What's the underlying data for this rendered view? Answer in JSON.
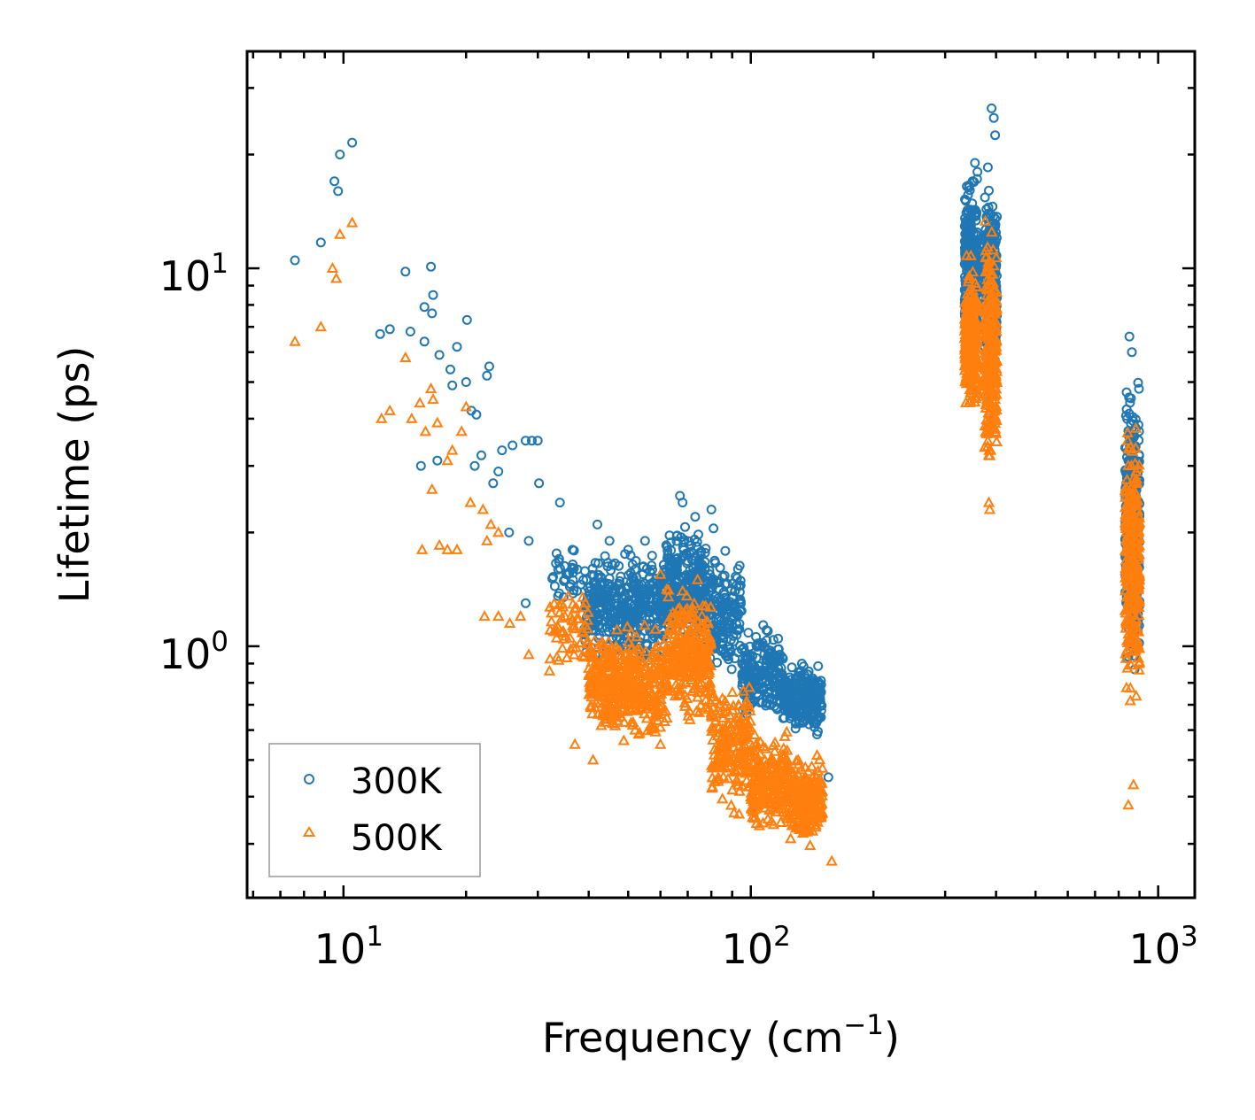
{
  "chart_data": {
    "type": "scatter",
    "title": "",
    "xlabel": "Frequency (cm",
    "xlabel_sup": "−1",
    "xlabel_end": ")",
    "ylabel": "Lifetime (ps)",
    "xscale": "log",
    "yscale": "log",
    "xlim": [
      5.8,
      1230
    ],
    "ylim": [
      0.216,
      37.5
    ],
    "x_ticks": [
      {
        "value": 10,
        "base": "10",
        "exp": "1"
      },
      {
        "value": 100,
        "base": "10",
        "exp": "2"
      },
      {
        "value": 1000,
        "base": "10",
        "exp": "3"
      }
    ],
    "y_ticks": [
      {
        "value": 1,
        "base": "10",
        "exp": "0"
      },
      {
        "value": 10,
        "base": "10",
        "exp": "1"
      }
    ],
    "legend_position": "lower-left",
    "series": [
      {
        "name": "300K",
        "marker": "circle",
        "color": "#1f77b4",
        "points": [
          [
            7.6,
            10.5
          ],
          [
            8.8,
            11.7
          ],
          [
            9.5,
            17.0
          ],
          [
            9.7,
            16.0
          ],
          [
            9.8,
            20.0
          ],
          [
            10.5,
            21.5
          ],
          [
            12.3,
            6.7
          ],
          [
            13.0,
            6.9
          ],
          [
            14.2,
            9.8
          ],
          [
            14.6,
            6.8
          ],
          [
            15.8,
            7.9
          ],
          [
            15.8,
            6.4
          ],
          [
            16.4,
            10.1
          ],
          [
            16.5,
            7.6
          ],
          [
            16.6,
            8.5
          ],
          [
            17.2,
            5.9
          ],
          [
            18.3,
            5.4
          ],
          [
            18.5,
            4.9
          ],
          [
            19.0,
            6.2
          ],
          [
            20.0,
            5.0
          ],
          [
            20.1,
            7.3
          ],
          [
            20.6,
            4.2
          ],
          [
            21.2,
            4.1
          ],
          [
            21.8,
            3.2
          ],
          [
            22.5,
            5.2
          ],
          [
            22.8,
            5.5
          ],
          [
            23.3,
            2.7
          ],
          [
            24.0,
            2.9
          ],
          [
            24.5,
            3.3
          ],
          [
            26.0,
            3.4
          ],
          [
            28.0,
            3.5
          ],
          [
            29.0,
            3.5
          ],
          [
            30.0,
            3.5
          ],
          [
            15.5,
            3.0
          ],
          [
            17.0,
            3.1
          ],
          [
            21.0,
            3.0
          ],
          [
            25.5,
            2.0
          ],
          [
            28.5,
            1.9
          ],
          [
            30.2,
            2.7
          ],
          [
            34.0,
            2.4
          ],
          [
            36.5,
            1.8
          ],
          [
            42.0,
            2.1
          ],
          [
            45.0,
            1.9
          ],
          [
            50.0,
            1.8
          ],
          [
            55.0,
            1.9
          ],
          [
            62.0,
            1.85
          ],
          [
            67.0,
            2.5
          ],
          [
            68.0,
            2.4
          ],
          [
            73.0,
            2.2
          ],
          [
            80.0,
            2.3
          ],
          [
            81.0,
            2.05
          ],
          [
            93.0,
            1.6
          ],
          [
            28.0,
            1.3
          ],
          [
            390.0,
            26.5
          ],
          [
            395.0,
            25.0
          ],
          [
            398.0,
            22.5
          ],
          [
            355.0,
            19.0
          ],
          [
            360.0,
            18.0
          ],
          [
            382.0,
            18.5
          ],
          [
            850.0,
            6.6
          ],
          [
            862.0,
            6.0
          ],
          [
            155.0,
            0.45
          ]
        ],
        "clusters": [
          {
            "x_range": [
              32,
              39
            ],
            "y_range": [
              1.2,
              1.9
            ],
            "count": 35,
            "ylog_power": 1.0
          },
          {
            "x_range": [
              39,
              62
            ],
            "y_range": [
              0.85,
              1.9
            ],
            "count": 420,
            "ylog_power": 1.0
          },
          {
            "x_range": [
              62,
              78
            ],
            "y_range": [
              0.9,
              2.2
            ],
            "count": 260,
            "ylog_power": 1.0
          },
          {
            "x_range": [
              78,
              95
            ],
            "y_range": [
              0.75,
              1.9
            ],
            "count": 170,
            "ylog_power": 1.0
          },
          {
            "x_range": [
              95,
              120
            ],
            "y_range": [
              0.6,
              1.2
            ],
            "count": 200,
            "ylog_power": 1.0
          },
          {
            "x_range": [
              120,
              150
            ],
            "y_range": [
              0.55,
              0.95
            ],
            "count": 240,
            "ylog_power": 1.0
          },
          {
            "x_range": [
              335,
              360
            ],
            "y_range": [
              5.2,
              19.5
            ],
            "count": 300,
            "ylog_power": 1.0
          },
          {
            "x_range": [
              375,
              402
            ],
            "y_range": [
              4.8,
              17.5
            ],
            "count": 320,
            "ylog_power": 1.0
          },
          {
            "x_range": [
              830,
              900
            ],
            "y_range": [
              0.75,
              6.0
            ],
            "count": 360,
            "ylog_power": 1.0
          }
        ]
      },
      {
        "name": "500K",
        "marker": "triangle",
        "color": "#ff7f0e",
        "points": [
          [
            7.6,
            6.4
          ],
          [
            8.8,
            7.0
          ],
          [
            9.4,
            10.0
          ],
          [
            9.6,
            9.4
          ],
          [
            9.8,
            12.3
          ],
          [
            10.5,
            13.2
          ],
          [
            12.4,
            4.0
          ],
          [
            13.0,
            4.2
          ],
          [
            14.2,
            5.8
          ],
          [
            14.7,
            4.0
          ],
          [
            15.4,
            4.4
          ],
          [
            15.9,
            3.7
          ],
          [
            16.4,
            4.8
          ],
          [
            16.6,
            4.5
          ],
          [
            17.0,
            3.9
          ],
          [
            18.0,
            3.1
          ],
          [
            18.5,
            3.3
          ],
          [
            19.5,
            3.7
          ],
          [
            20.0,
            4.3
          ],
          [
            20.5,
            2.4
          ],
          [
            22.0,
            2.3
          ],
          [
            22.5,
            1.9
          ],
          [
            23.0,
            2.1
          ],
          [
            24.0,
            2.0
          ],
          [
            16.5,
            2.6
          ],
          [
            15.6,
            1.8
          ],
          [
            17.2,
            1.85
          ],
          [
            18.0,
            1.8
          ],
          [
            19.0,
            1.8
          ],
          [
            22.2,
            1.2
          ],
          [
            24.0,
            1.2
          ],
          [
            25.6,
            1.15
          ],
          [
            27.2,
            1.2
          ],
          [
            28.5,
            0.95
          ],
          [
            35.0,
            1.2
          ],
          [
            37.0,
            0.55
          ],
          [
            41.0,
            0.5
          ],
          [
            52.0,
            0.6
          ],
          [
            60.0,
            0.55
          ],
          [
            68.0,
            1.4
          ],
          [
            845.0,
            0.38
          ],
          [
            870.0,
            0.43
          ],
          [
            158.0,
            0.27
          ],
          [
            60.0,
            1.55
          ],
          [
            74.0,
            1.5
          ],
          [
            384.0,
            2.4
          ],
          [
            386.0,
            2.3
          ]
        ],
        "clusters": [
          {
            "x_range": [
              32,
              40
            ],
            "y_range": [
              0.75,
              1.6
            ],
            "count": 60,
            "ylog_power": 1.0
          },
          {
            "x_range": [
              40,
              62
            ],
            "y_range": [
              0.52,
              1.2
            ],
            "count": 420,
            "ylog_power": 1.0
          },
          {
            "x_range": [
              62,
              80
            ],
            "y_range": [
              0.6,
              1.5
            ],
            "count": 280,
            "ylog_power": 1.0
          },
          {
            "x_range": [
              80,
              100
            ],
            "y_range": [
              0.35,
              0.85
            ],
            "count": 200,
            "ylog_power": 1.0
          },
          {
            "x_range": [
              100,
              125
            ],
            "y_range": [
              0.3,
              0.62
            ],
            "count": 220,
            "ylog_power": 1.0
          },
          {
            "x_range": [
              125,
              150
            ],
            "y_range": [
              0.28,
              0.55
            ],
            "count": 220,
            "ylog_power": 1.0
          },
          {
            "x_range": [
              335,
              360
            ],
            "y_range": [
              3.8,
              11.0
            ],
            "count": 300,
            "ylog_power": 1.0
          },
          {
            "x_range": [
              375,
              402
            ],
            "y_range": [
              2.7,
              14.5
            ],
            "count": 320,
            "ylog_power": 1.0
          },
          {
            "x_range": [
              830,
              900
            ],
            "y_range": [
              0.6,
              4.2
            ],
            "count": 340,
            "ylog_power": 1.0
          }
        ]
      }
    ]
  }
}
